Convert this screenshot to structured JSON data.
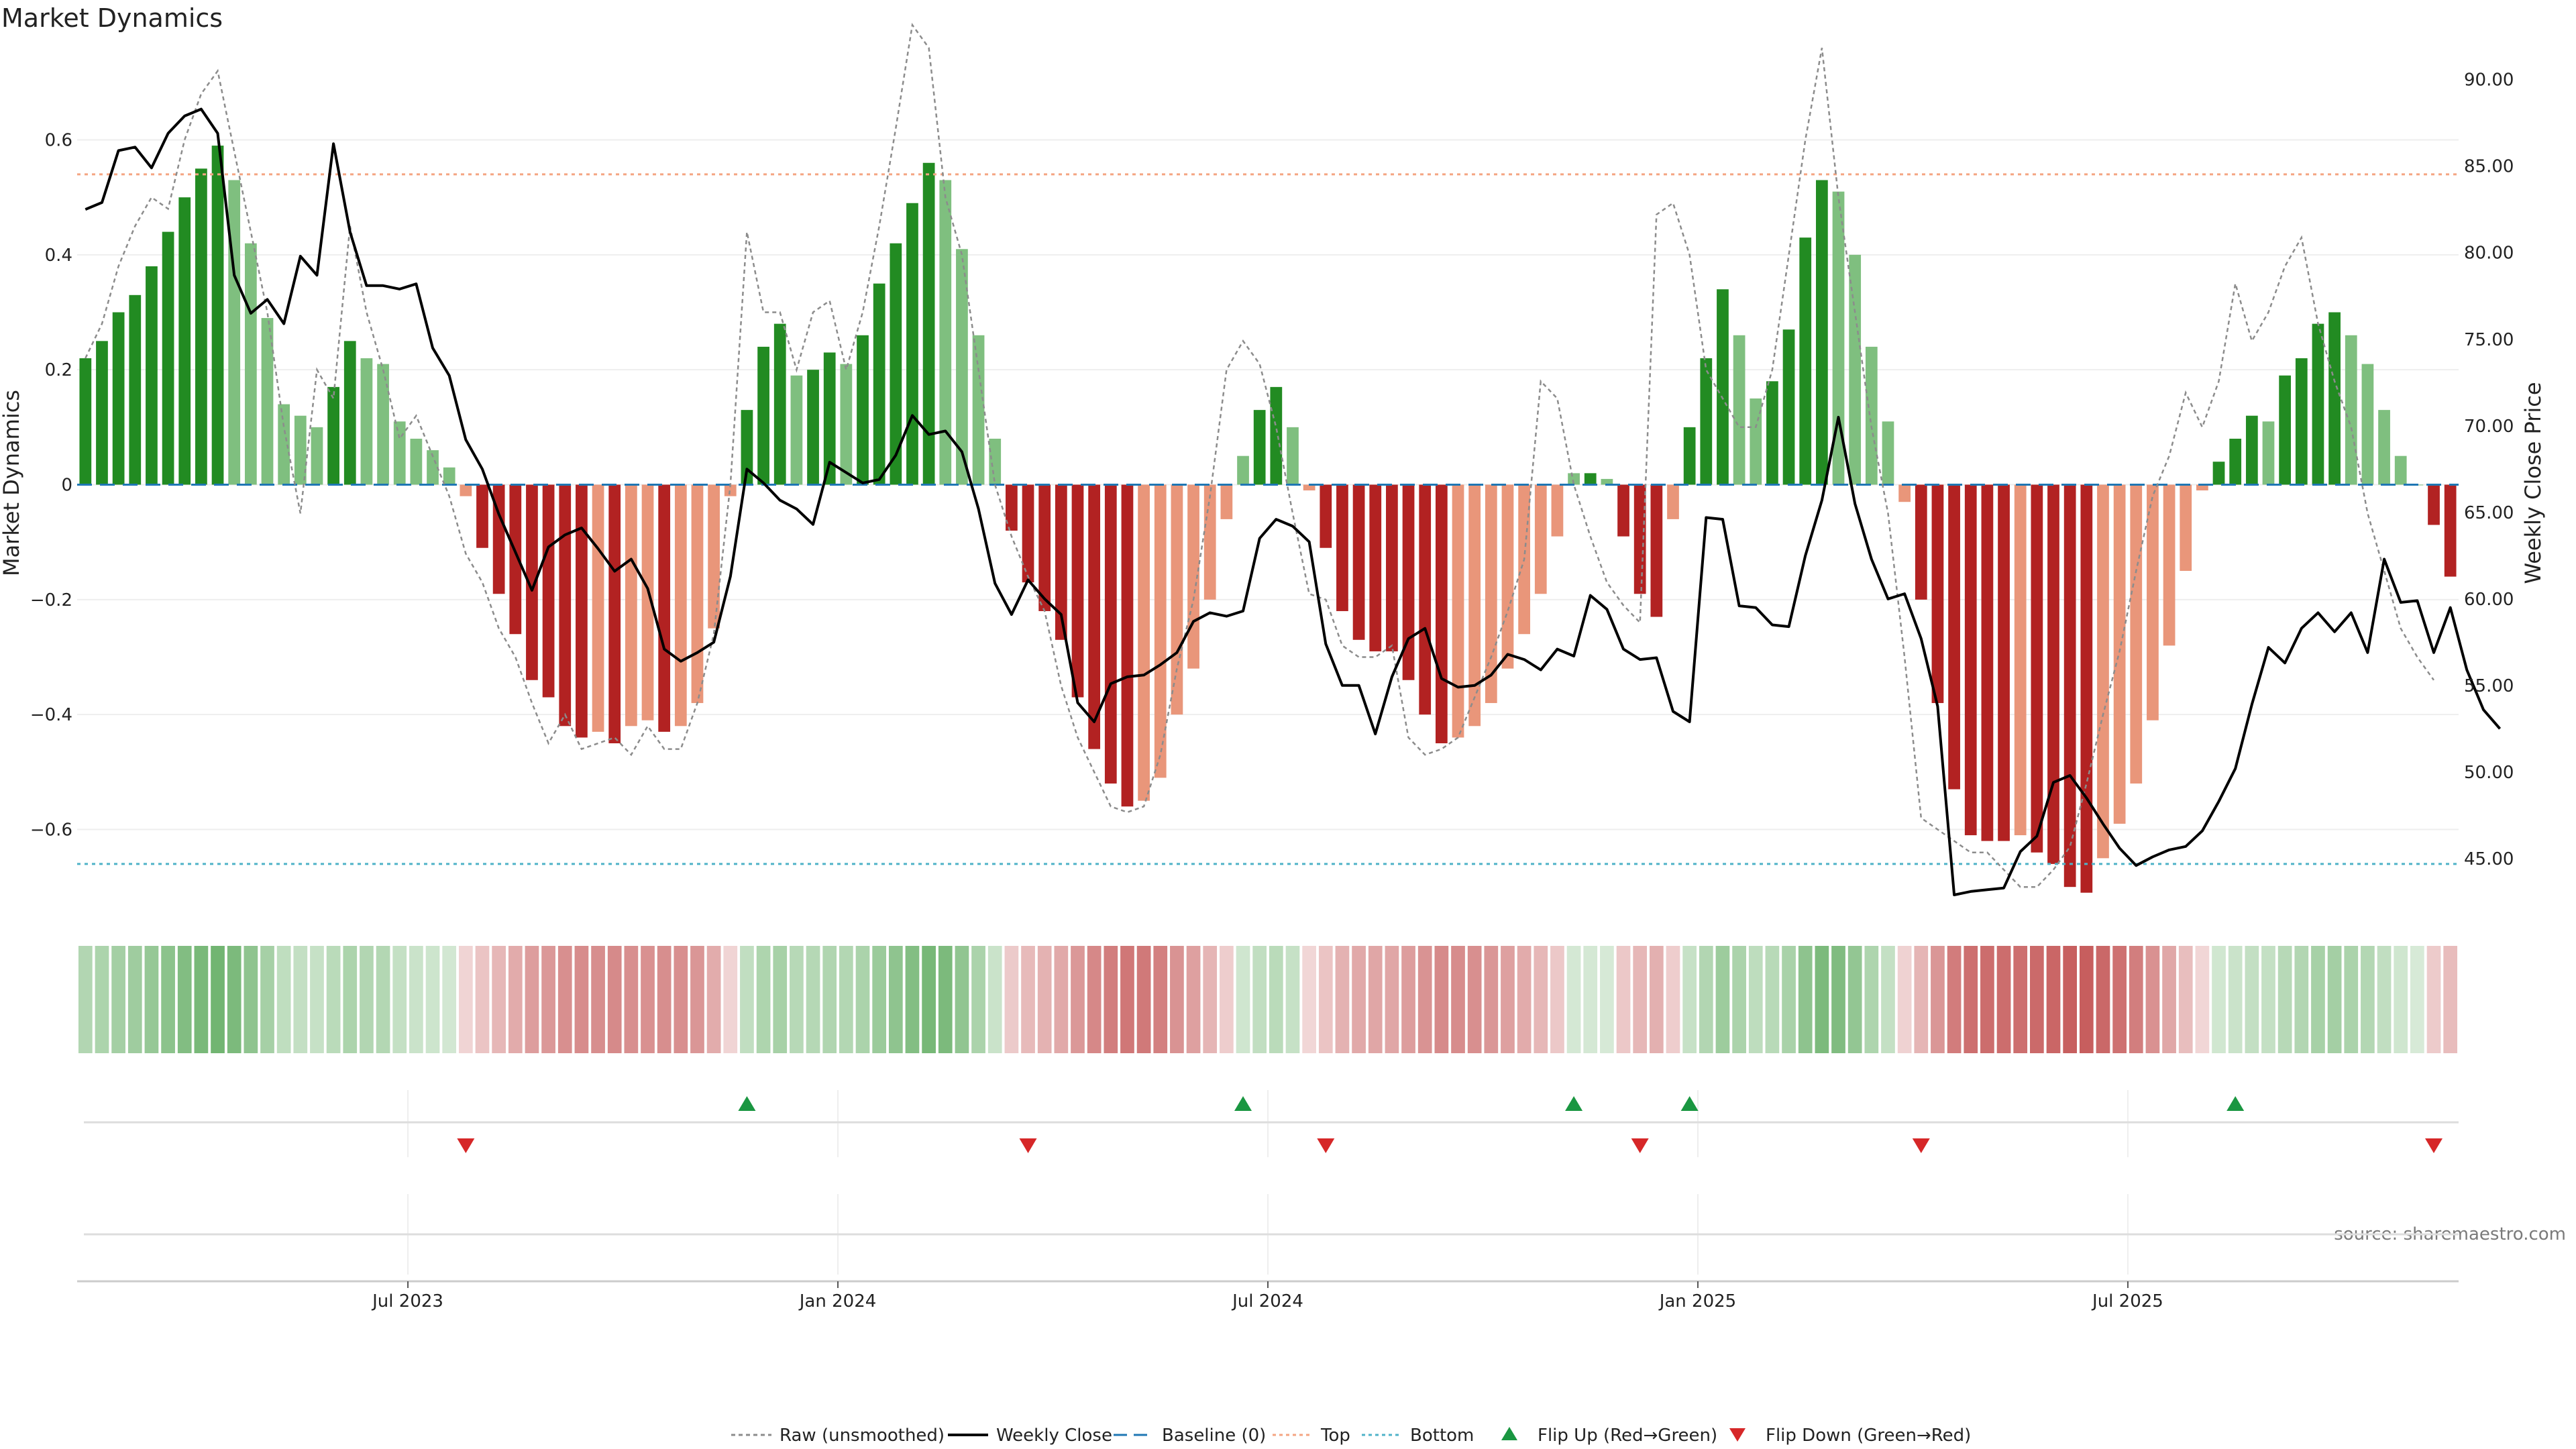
{
  "chart_data": {
    "type": "bar",
    "title": "Market Dynamics",
    "source": "source: sharemaestro.com",
    "y_left": {
      "label": "Market Dynamics",
      "min": -0.75,
      "max": 0.75,
      "ticks": [
        0.6,
        0.4,
        0.2,
        0,
        -0.2,
        -0.4,
        -0.6
      ],
      "tick_labels": [
        "0.6",
        "0.4",
        "0.2",
        "0",
        "−0.2",
        "−0.4",
        "−0.6"
      ]
    },
    "y_right": {
      "label": "Weekly Close Price",
      "min": 41.7,
      "max": 91.5,
      "ticks": [
        90,
        85,
        80,
        75,
        70,
        65,
        60,
        55,
        50,
        45
      ],
      "tick_labels": [
        "90.00",
        "85.00",
        "80.00",
        "75.00",
        "70.00",
        "65.00",
        "60.00",
        "55.00",
        "50.00",
        "45.00"
      ]
    },
    "x_ticks": [
      "Jul 2023",
      "Jan 2024",
      "Jul 2024",
      "Jan 2025",
      "Jul 2025"
    ],
    "x_tick_positions": [
      20,
      46,
      72,
      98,
      124
    ],
    "n_weeks": 144,
    "top_level": 0.54,
    "bottom_level": -0.66,
    "bars": [
      0.22,
      0.25,
      0.3,
      0.33,
      0.38,
      0.44,
      0.5,
      0.55,
      0.59,
      0.53,
      0.42,
      0.29,
      0.14,
      0.12,
      0.1,
      0.17,
      0.25,
      0.22,
      0.21,
      0.11,
      0.08,
      0.06,
      0.03,
      -0.02,
      -0.11,
      -0.19,
      -0.26,
      -0.34,
      -0.37,
      -0.42,
      -0.44,
      -0.43,
      -0.45,
      -0.42,
      -0.41,
      -0.43,
      -0.42,
      -0.38,
      -0.25,
      -0.02,
      0.13,
      0.24,
      0.28,
      0.19,
      0.2,
      0.23,
      0.21,
      0.26,
      0.35,
      0.42,
      0.49,
      0.56,
      0.53,
      0.41,
      0.26,
      0.08,
      -0.08,
      -0.17,
      -0.22,
      -0.27,
      -0.37,
      -0.46,
      -0.52,
      -0.56,
      -0.55,
      -0.51,
      -0.4,
      -0.32,
      -0.2,
      -0.06,
      0.05,
      0.13,
      0.17,
      0.1,
      -0.01,
      -0.11,
      -0.22,
      -0.27,
      -0.29,
      -0.29,
      -0.34,
      -0.4,
      -0.45,
      -0.44,
      -0.42,
      -0.38,
      -0.32,
      -0.26,
      -0.19,
      -0.09,
      0.02,
      0.02,
      0.01,
      -0.09,
      -0.19,
      -0.23,
      -0.06,
      0.1,
      0.22,
      0.34,
      0.26,
      0.15,
      0.18,
      0.27,
      0.43,
      0.53,
      0.51,
      0.4,
      0.24,
      0.11,
      -0.03,
      -0.2,
      -0.38,
      -0.53,
      -0.61,
      -0.62,
      -0.62,
      -0.61,
      -0.64,
      -0.66,
      -0.7,
      -0.71,
      -0.65,
      -0.59,
      -0.52,
      -0.41,
      -0.28,
      -0.15,
      -0.01,
      0.04,
      0.08,
      0.12,
      0.11,
      0.19,
      0.22,
      0.28,
      0.3,
      0.26,
      0.21,
      0.13,
      0.05,
      0.0,
      -0.07,
      -0.16
    ],
    "raw": [
      0.22,
      0.28,
      0.38,
      0.45,
      0.5,
      0.48,
      0.6,
      0.68,
      0.72,
      0.58,
      0.44,
      0.3,
      0.1,
      -0.05,
      0.2,
      0.15,
      0.45,
      0.3,
      0.2,
      0.08,
      0.12,
      0.05,
      -0.02,
      -0.12,
      -0.17,
      -0.25,
      -0.3,
      -0.38,
      -0.45,
      -0.4,
      -0.46,
      -0.45,
      -0.44,
      -0.47,
      -0.42,
      -0.46,
      -0.46,
      -0.38,
      -0.26,
      0.0,
      0.44,
      0.3,
      0.3,
      0.2,
      0.3,
      0.32,
      0.2,
      0.3,
      0.45,
      0.62,
      0.8,
      0.76,
      0.5,
      0.4,
      0.2,
      0.0,
      -0.09,
      -0.16,
      -0.22,
      -0.35,
      -0.44,
      -0.5,
      -0.56,
      -0.57,
      -0.56,
      -0.47,
      -0.32,
      -0.2,
      -0.02,
      0.2,
      0.25,
      0.21,
      0.1,
      -0.05,
      -0.19,
      -0.2,
      -0.28,
      -0.3,
      -0.3,
      -0.28,
      -0.44,
      -0.47,
      -0.46,
      -0.44,
      -0.37,
      -0.3,
      -0.22,
      -0.13,
      0.18,
      0.15,
      0.0,
      -0.09,
      -0.17,
      -0.21,
      -0.24,
      0.47,
      0.49,
      0.4,
      0.2,
      0.15,
      0.1,
      0.1,
      0.2,
      0.4,
      0.6,
      0.76,
      0.5,
      0.3,
      0.1,
      -0.05,
      -0.3,
      -0.58,
      -0.6,
      -0.62,
      -0.64,
      -0.64,
      -0.67,
      -0.7,
      -0.7,
      -0.67,
      -0.63,
      -0.52,
      -0.4,
      -0.29,
      -0.15,
      -0.02,
      0.05,
      0.16,
      0.1,
      0.18,
      0.35,
      0.25,
      0.3,
      0.38,
      0.43,
      0.28,
      0.18,
      0.1,
      -0.05,
      -0.15,
      -0.25,
      -0.3,
      -0.34
    ],
    "weekly_close": [
      82.5,
      82.9,
      85.9,
      86.1,
      84.9,
      86.9,
      87.9,
      88.3,
      86.9,
      78.7,
      76.5,
      77.3,
      75.9,
      79.8,
      78.7,
      86.3,
      81.2,
      78.1,
      78.1,
      77.9,
      78.2,
      74.5,
      72.9,
      69.2,
      67.5,
      64.9,
      62.7,
      60.5,
      63.0,
      63.7,
      64.1,
      62.9,
      61.6,
      62.3,
      60.6,
      57.1,
      56.4,
      56.9,
      57.5,
      61.3,
      67.5,
      66.7,
      65.7,
      65.2,
      64.3,
      67.9,
      67.3,
      66.7,
      66.9,
      68.3,
      70.6,
      69.5,
      69.7,
      68.5,
      65.2,
      60.9,
      59.1,
      61.1,
      60.0,
      59.1,
      54.0,
      52.9,
      55.1,
      55.5,
      55.6,
      56.2,
      56.9,
      58.7,
      59.2,
      59.0,
      59.3,
      63.5,
      64.6,
      64.2,
      63.3,
      57.4,
      55.0,
      55.0,
      52.2,
      55.5,
      57.7,
      58.3,
      55.4,
      54.9,
      55.0,
      55.6,
      56.8,
      56.5,
      55.9,
      57.1,
      56.7,
      60.2,
      59.4,
      57.1,
      56.5,
      56.6,
      53.5,
      52.9,
      64.7,
      64.6,
      59.6,
      59.5,
      58.5,
      58.4,
      62.5,
      65.7,
      70.5,
      65.5,
      62.3,
      60.0,
      60.3,
      57.7,
      53.8,
      42.9,
      43.1,
      43.2,
      43.3,
      45.4,
      46.3,
      49.4,
      49.8,
      48.5,
      47.0,
      45.6,
      44.6,
      45.1,
      45.5,
      45.7,
      46.6,
      48.3,
      50.2,
      53.9,
      57.2,
      56.3,
      58.3,
      59.2,
      58.1,
      59.2,
      56.9,
      62.3,
      59.8,
      59.9,
      56.9,
      59.5,
      55.9,
      53.6,
      52.5
    ],
    "flip_up": [
      40,
      70,
      90,
      97,
      130
    ],
    "flip_down": [
      23,
      57,
      75,
      94,
      111,
      142
    ],
    "colors": {
      "strong_green": "#228b22",
      "light_green": "#7fbf7f",
      "strong_red": "#b22222",
      "light_red": "#e9967a",
      "close_line": "#000000",
      "raw_line": "#8c8c8c",
      "baseline": "#1f77b4",
      "top_line": "#f4a582",
      "bottom_line": "#4fb3c8",
      "flip_up": "#1a9641",
      "flip_down": "#d62728"
    },
    "legend": {
      "raw": "Raw (unsmoothed)",
      "close": "Weekly Close",
      "baseline": "Baseline (0)",
      "top": "Top",
      "bottom": "Bottom",
      "flip_up": "Flip Up (Red→Green)",
      "flip_down": "Flip Down (Green→Red)",
      "position": "bottom-center"
    }
  }
}
